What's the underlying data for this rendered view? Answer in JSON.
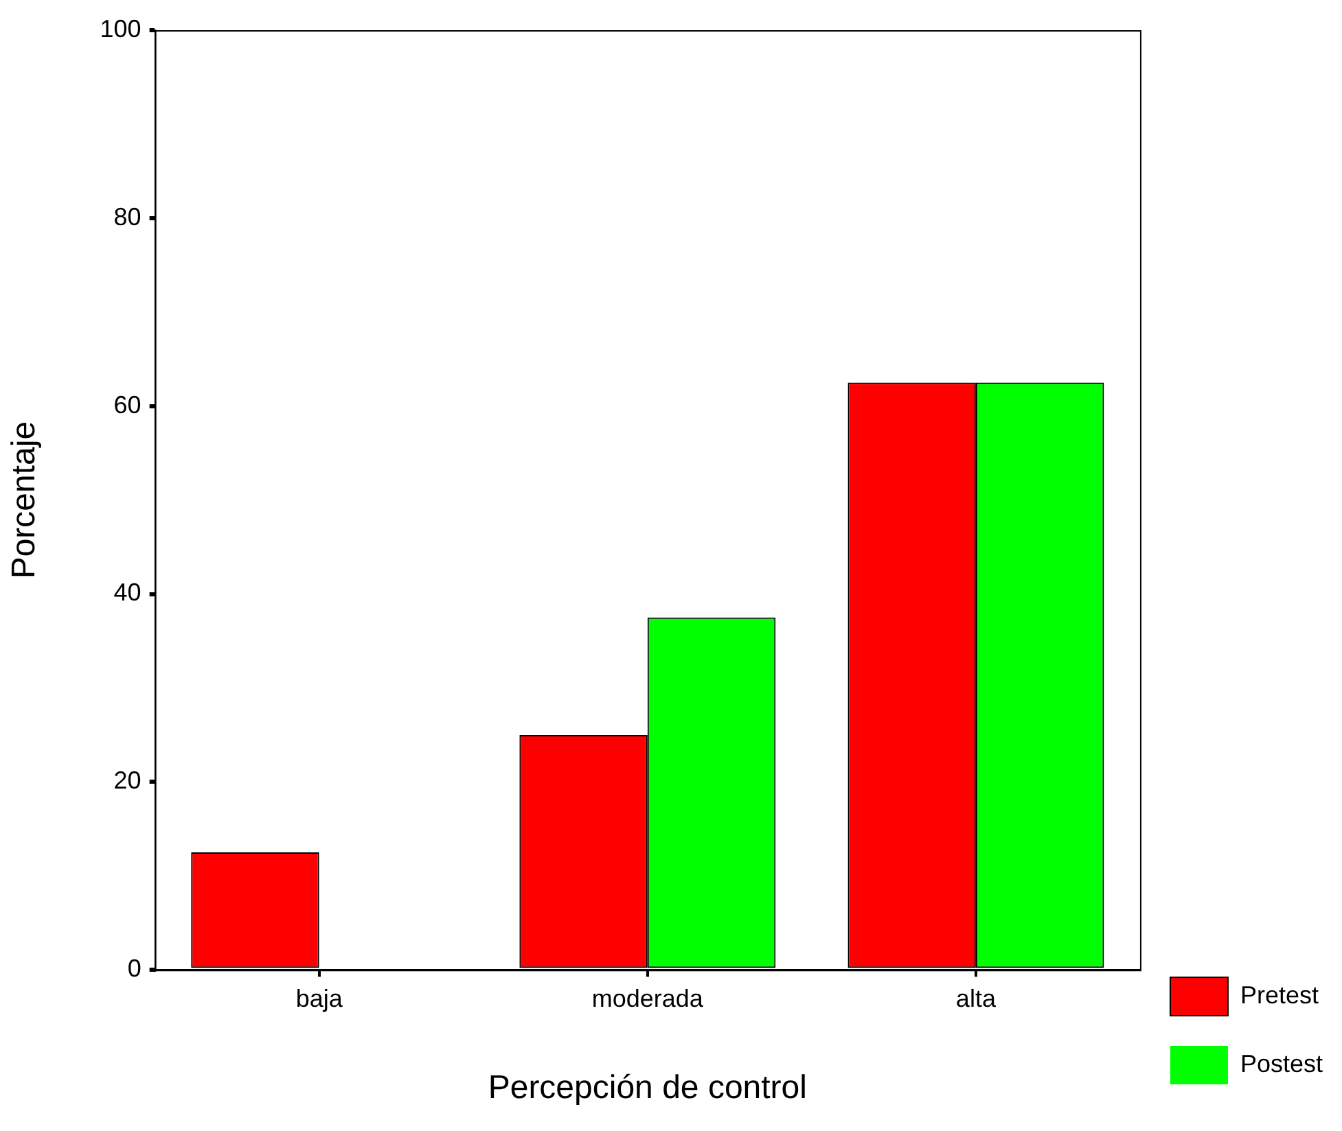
{
  "chart_data": {
    "type": "bar",
    "xlabel": "Percepción de control",
    "ylabel": "Porcentaje",
    "categories": [
      "baja",
      "moderada",
      "alta"
    ],
    "series": [
      {
        "name": "Pretest",
        "color": "#ff0000",
        "values": [
          12.5,
          25,
          62.5
        ]
      },
      {
        "name": "Postest",
        "color": "#00ff00",
        "values": [
          0,
          37.5,
          62.5
        ]
      }
    ],
    "ylim": [
      0,
      100
    ],
    "yticks": [
      0,
      20,
      40,
      60,
      80,
      100
    ],
    "grid": false,
    "legend": "bottom right"
  }
}
